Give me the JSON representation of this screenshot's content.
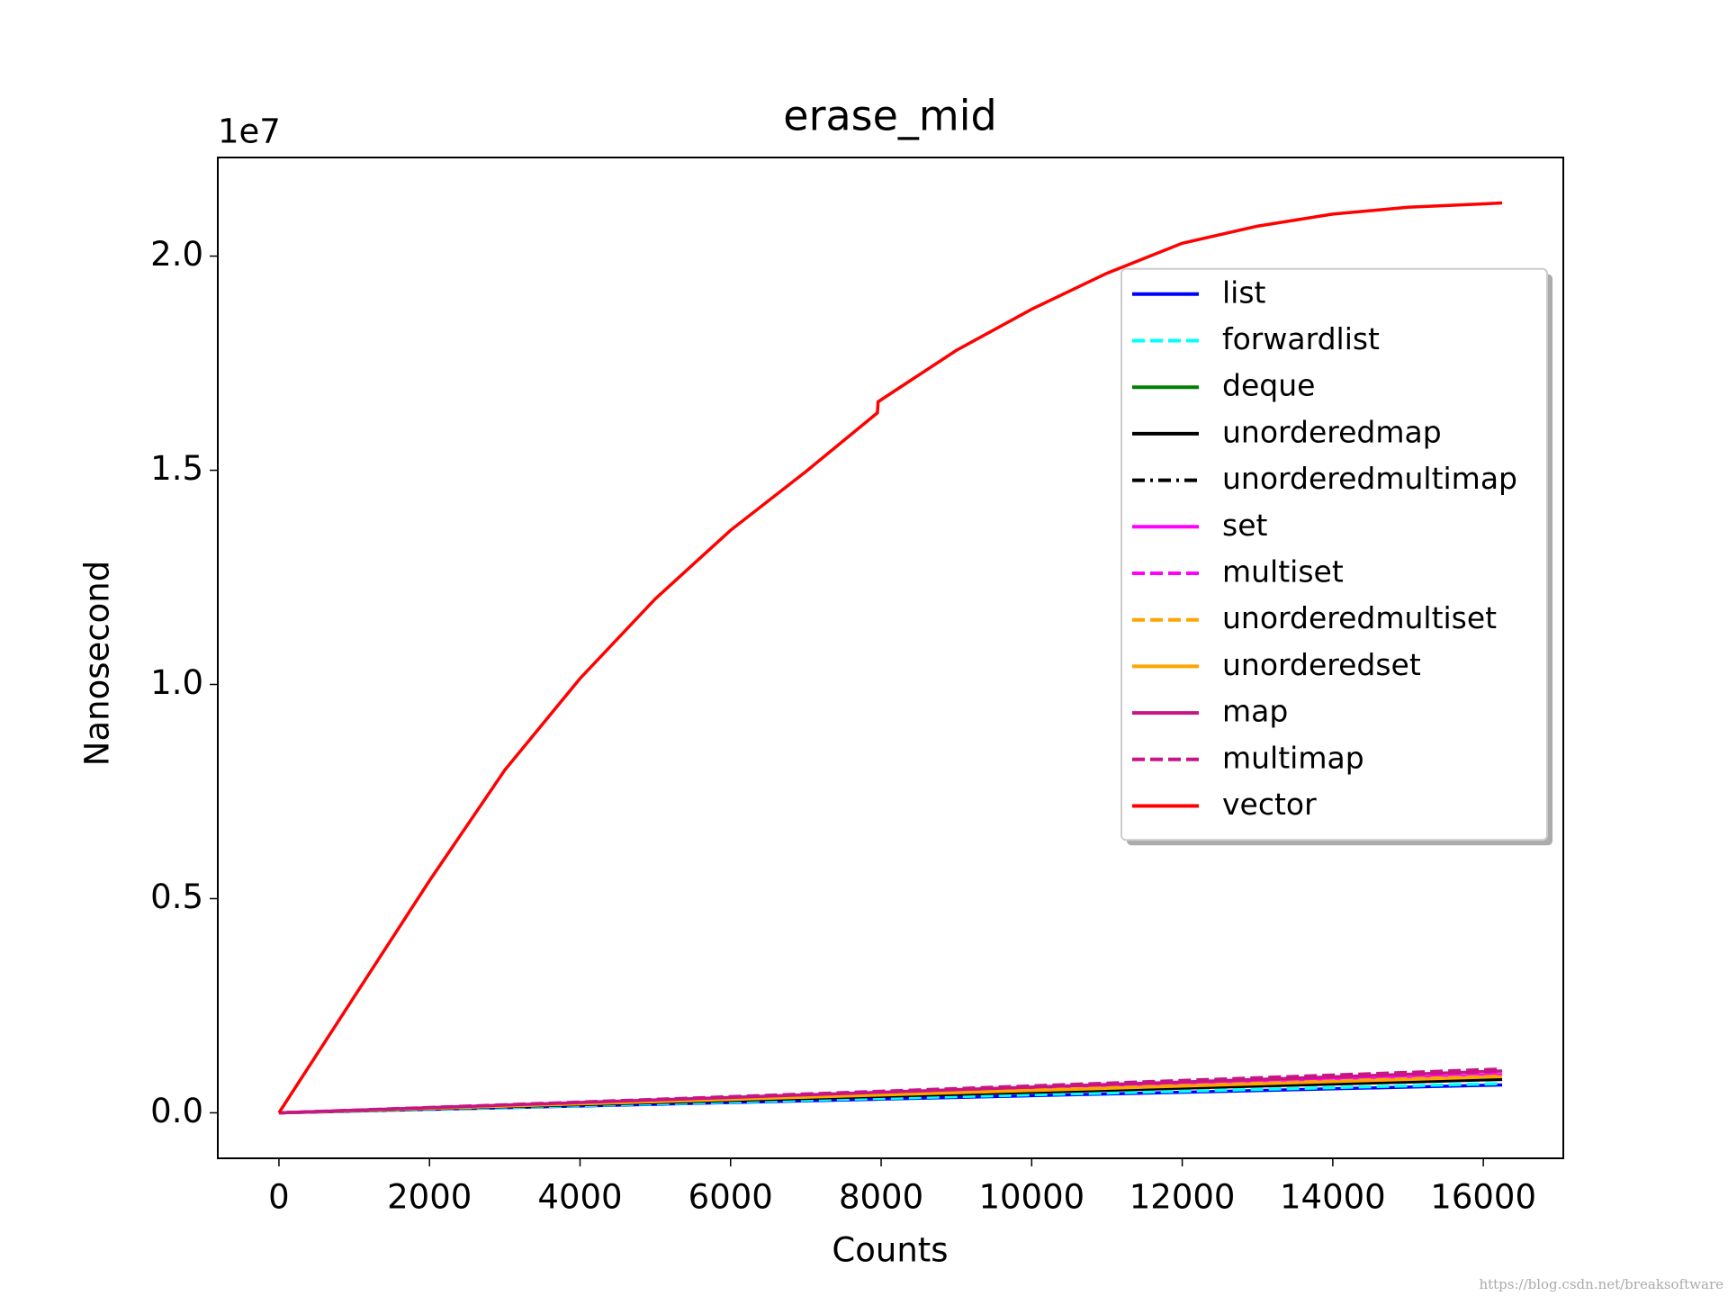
{
  "chart_data": {
    "type": "line",
    "title": "erase_mid",
    "x_label": "Counts",
    "y_label": "Nanosecond",
    "y_offset_label": "1e7",
    "watermark": "https://blog.csdn.net/breaksoftware",
    "legend": "center right",
    "grid": false,
    "x": [
      0,
      1000,
      2000,
      3000,
      4000,
      5000,
      6000,
      7000,
      7950,
      7960,
      9000,
      10000,
      11000,
      12000,
      13000,
      14000,
      15000,
      16250
    ],
    "xlim": [
      -812.5,
      17062.5
    ],
    "xticks": [
      0,
      2000,
      4000,
      6000,
      8000,
      10000,
      12000,
      14000,
      16000
    ],
    "ylim": [
      -1062000,
      22302000
    ],
    "yticks": [
      {
        "value": 0,
        "label": "0.0"
      },
      {
        "value": 5000000,
        "label": "0.5"
      },
      {
        "value": 10000000,
        "label": "1.0"
      },
      {
        "value": 15000000,
        "label": "1.5"
      },
      {
        "value": 20000000,
        "label": "2.0"
      }
    ],
    "series": [
      {
        "name": "list",
        "color": "#0000ff",
        "style": "solid",
        "values": [
          0,
          40000,
          80000,
          120000,
          160000,
          200000,
          240000,
          280000,
          318000,
          318400,
          360000,
          400000,
          440000,
          480000,
          520000,
          560000,
          600000,
          650000
        ]
      },
      {
        "name": "forwardlist",
        "color": "#00ffff",
        "style": "dashed",
        "values": [
          0,
          42000,
          84000,
          126000,
          168000,
          210000,
          252000,
          294000,
          333900,
          334320,
          378000,
          420000,
          462000,
          504000,
          546000,
          588000,
          630000,
          682500
        ]
      },
      {
        "name": "deque",
        "color": "#008000",
        "style": "solid",
        "values": [
          0,
          50000,
          100000,
          150000,
          200000,
          250000,
          300000,
          350000,
          397500,
          398000,
          450000,
          500000,
          550000,
          600000,
          650000,
          700000,
          750000,
          812500
        ]
      },
      {
        "name": "unorderedmap",
        "color": "#000000",
        "style": "solid",
        "values": [
          0,
          48000,
          96000,
          144000,
          192000,
          240000,
          288000,
          336000,
          381600,
          382080,
          432000,
          480000,
          528000,
          576000,
          624000,
          672000,
          720000,
          780000
        ]
      },
      {
        "name": "unorderedmultimap",
        "color": "#000000",
        "style": "dashdot",
        "values": [
          0,
          49000,
          98000,
          147000,
          196000,
          245000,
          294000,
          343000,
          389550,
          390040,
          441000,
          490000,
          539000,
          588000,
          637000,
          686000,
          735000,
          796250
        ]
      },
      {
        "name": "set",
        "color": "#ff00ff",
        "style": "solid",
        "values": [
          0,
          55000,
          110000,
          165000,
          220000,
          275000,
          330000,
          385000,
          437250,
          437800,
          495000,
          550000,
          605000,
          660000,
          715000,
          770000,
          825000,
          893750
        ]
      },
      {
        "name": "multiset",
        "color": "#ff00ff",
        "style": "dashed",
        "values": [
          0,
          56000,
          112000,
          168000,
          224000,
          280000,
          336000,
          392000,
          445200,
          445760,
          504000,
          560000,
          616000,
          672000,
          728000,
          784000,
          840000,
          910000
        ]
      },
      {
        "name": "unorderedmultiset",
        "color": "#ffa500",
        "style": "dashed",
        "values": [
          0,
          53000,
          106000,
          159000,
          212000,
          265000,
          318000,
          371000,
          421350,
          421880,
          477000,
          530000,
          583000,
          636000,
          689000,
          742000,
          795000,
          861250
        ]
      },
      {
        "name": "unorderedset",
        "color": "#ffa500",
        "style": "solid",
        "values": [
          0,
          52000,
          104000,
          156000,
          208000,
          260000,
          312000,
          364000,
          413400,
          413920,
          468000,
          520000,
          572000,
          624000,
          676000,
          728000,
          780000,
          845000
        ]
      },
      {
        "name": "map",
        "color": "#c71585",
        "style": "solid",
        "values": [
          0,
          60000,
          120000,
          180000,
          240000,
          300000,
          360000,
          420000,
          477000,
          477600,
          540000,
          600000,
          660000,
          720000,
          780000,
          840000,
          900000,
          975000
        ]
      },
      {
        "name": "multimap",
        "color": "#c71585",
        "style": "dashed",
        "values": [
          0,
          63000,
          126000,
          189000,
          252000,
          315000,
          378000,
          441000,
          500850,
          501480,
          567000,
          630000,
          693000,
          756000,
          819000,
          882000,
          945000,
          1023750
        ]
      },
      {
        "name": "vector",
        "color": "#ff0000",
        "style": "solid",
        "values": [
          0,
          2710000,
          5420000,
          8000000,
          10140000,
          12000000,
          13600000,
          14970000,
          16340000,
          16600000,
          17800000,
          18760000,
          19600000,
          20300000,
          20700000,
          20980000,
          21140000,
          21240000
        ]
      }
    ]
  }
}
